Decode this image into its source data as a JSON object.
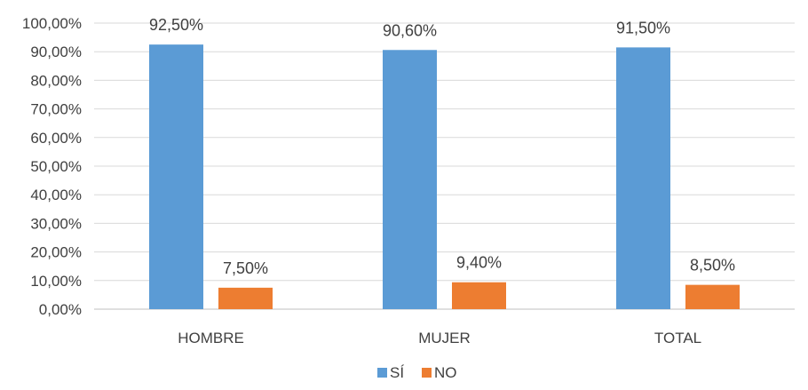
{
  "chart_data": {
    "type": "bar",
    "categories": [
      "HOMBRE",
      "MUJER",
      "TOTAL"
    ],
    "series": [
      {
        "name": "SÍ",
        "color": "#5b9bd5",
        "values": [
          92.5,
          90.6,
          91.5
        ],
        "labels": [
          "92,50%",
          "90,60%",
          "91,50%"
        ]
      },
      {
        "name": "NO",
        "color": "#ed7d31",
        "values": [
          7.5,
          9.4,
          8.5
        ],
        "labels": [
          "7,50%",
          "9,40%",
          "8,50%"
        ]
      }
    ],
    "ylim": [
      0,
      100
    ],
    "yticks": [
      0,
      10,
      20,
      30,
      40,
      50,
      60,
      70,
      80,
      90,
      100
    ],
    "ytick_labels": [
      "0,00%",
      "10,00%",
      "20,00%",
      "30,00%",
      "40,00%",
      "50,00%",
      "60,00%",
      "70,00%",
      "80,00%",
      "90,00%",
      "100,00%"
    ],
    "grid": true,
    "legend": "bottom"
  }
}
